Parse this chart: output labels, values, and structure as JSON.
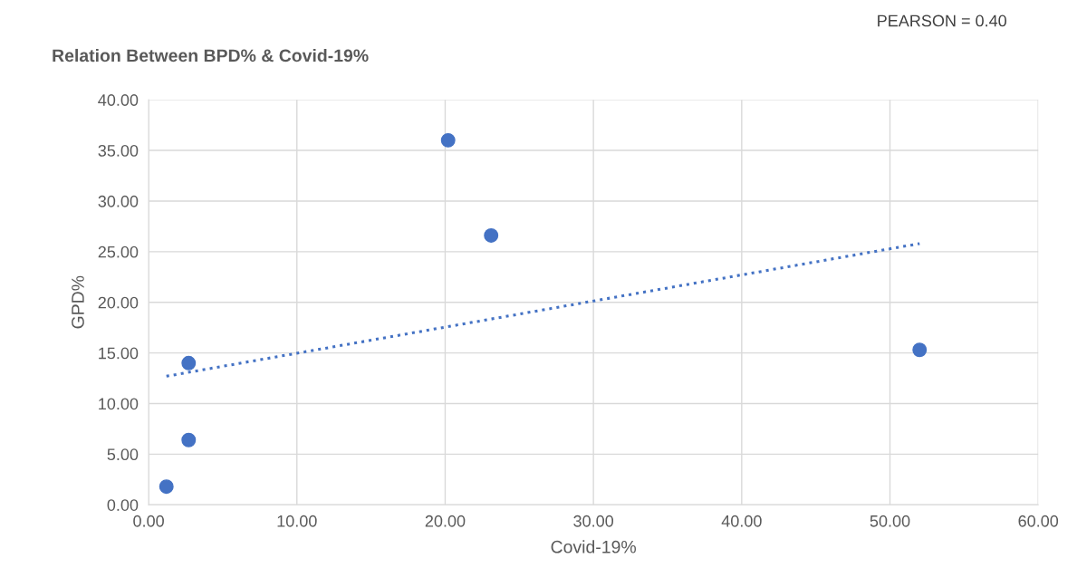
{
  "chart_data": {
    "type": "scatter",
    "title": "Relation Between BPD% & Covid-19%",
    "xlabel": "Covid-19%",
    "ylabel": "GPD%",
    "annotations": [
      "PEARSON = 0.40"
    ],
    "series": [
      {
        "color": "#4472c4",
        "x": [
          1.2,
          2.7,
          2.7,
          20.2,
          23.1,
          52.0
        ],
        "values": [
          1.8,
          6.4,
          14.0,
          36.0,
          26.6,
          15.3
        ],
        "marker": "circle"
      },
      {
        "type": "line",
        "color": "#4472c4",
        "x": [
          1.2,
          52.0
        ],
        "values": [
          12.7,
          25.8
        ],
        "line_style": "dotted",
        "marker": "none"
      }
    ],
    "xlim": [
      0,
      60
    ],
    "ylim": [
      0,
      40
    ],
    "xticks": [
      {
        "value": 0,
        "label": "0.00"
      },
      {
        "value": 10,
        "label": "10.00"
      },
      {
        "value": 20,
        "label": "20.00"
      },
      {
        "value": 30,
        "label": "30.00"
      },
      {
        "value": 40,
        "label": "40.00"
      },
      {
        "value": 50,
        "label": "50.00"
      },
      {
        "value": 60,
        "label": "60.00"
      }
    ],
    "yticks": [
      {
        "value": 0,
        "label": "0.00"
      },
      {
        "value": 5,
        "label": "5.00"
      },
      {
        "value": 10,
        "label": "10.00"
      },
      {
        "value": 15,
        "label": "15.00"
      },
      {
        "value": 20,
        "label": "20.00"
      },
      {
        "value": 25,
        "label": "25.00"
      },
      {
        "value": 30,
        "label": "30.00"
      },
      {
        "value": 35,
        "label": "35.00"
      },
      {
        "value": 40,
        "label": "40.00"
      }
    ],
    "grid": true
  }
}
